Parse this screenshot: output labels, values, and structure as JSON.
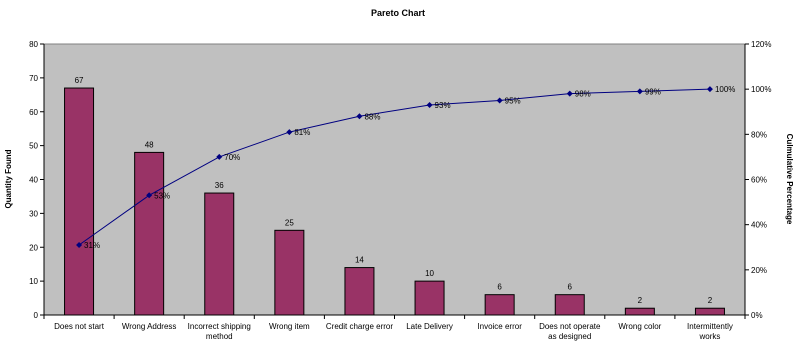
{
  "chart_data": {
    "type": "bar",
    "title": "Pareto Chart",
    "xlabel": "",
    "ylabel": "Quantity Found",
    "y2label": "Culmulative Percentage",
    "ylim": [
      0,
      80
    ],
    "y2lim": [
      0,
      120
    ],
    "yticks": [
      "0",
      "10",
      "20",
      "30",
      "40",
      "50",
      "60",
      "70",
      "80"
    ],
    "y2ticks": [
      "0%",
      "20%",
      "40%",
      "60%",
      "80%",
      "100%",
      "120%"
    ],
    "categories": [
      [
        "Does not start"
      ],
      [
        "Wrong Address"
      ],
      [
        "Incorrect shipping",
        "method"
      ],
      [
        "Wrong item"
      ],
      [
        "Credit charge error"
      ],
      [
        "Late Delivery"
      ],
      [
        "Invoice error"
      ],
      [
        "Does not operate",
        "as designed"
      ],
      [
        "Wrong color"
      ],
      [
        "Intermittently",
        "works"
      ]
    ],
    "values": [
      67,
      48,
      36,
      25,
      14,
      10,
      6,
      6,
      2,
      2
    ],
    "cumulative": [
      31,
      53,
      70,
      81,
      88,
      93,
      95,
      98,
      99,
      100
    ],
    "cumulative_labels": [
      "31%",
      "53%",
      "70%",
      "81%",
      "88%",
      "93%",
      "95%",
      "98%",
      "99%",
      "100%"
    ],
    "grid": false,
    "colors": {
      "plot_background": "#c0c0c0",
      "bar_fill": "#993366",
      "bar_stroke": "#000000",
      "line": "#000080"
    }
  }
}
